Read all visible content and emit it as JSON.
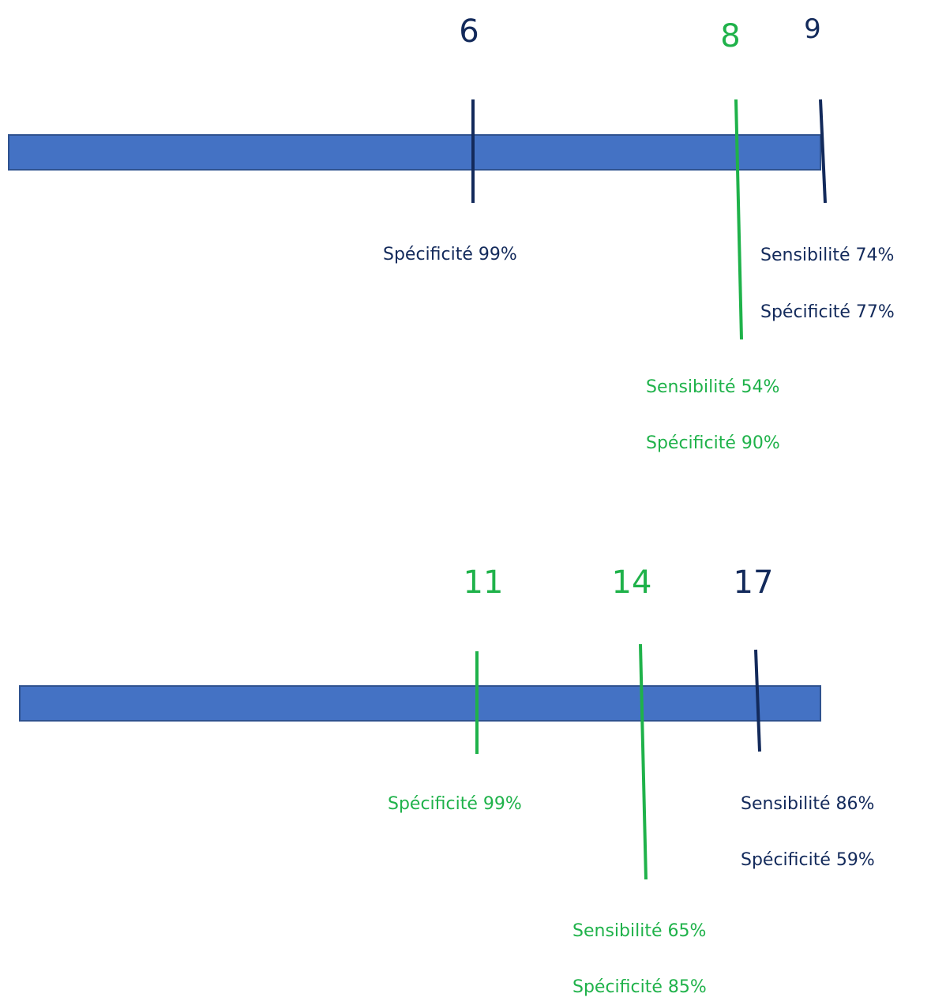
{
  "colors": {
    "bar": "#4472c4",
    "bar_border": "#2f528f",
    "navy": "#132a5b",
    "green": "#1fb24a"
  },
  "scale1": {
    "marker_6": {
      "value": "6",
      "specificity": "Spécificité 99%"
    },
    "marker_8": {
      "value": "8",
      "sensitivity": "Sensibilité 54%",
      "specificity": "Spécificité 90%"
    },
    "marker_9": {
      "value": "9",
      "sensitivity": "Sensibilité 74%",
      "specificity": "Spécificité 77%"
    }
  },
  "scale2": {
    "marker_11": {
      "value": "11",
      "specificity": "Spécificité 99%"
    },
    "marker_14": {
      "value": "14",
      "sensitivity": "Sensibilité 65%",
      "specificity": "Spécificité 85%"
    },
    "marker_17": {
      "value": "17",
      "sensitivity": "Sensibilité 86%",
      "specificity": "Spécificité 59%"
    }
  }
}
